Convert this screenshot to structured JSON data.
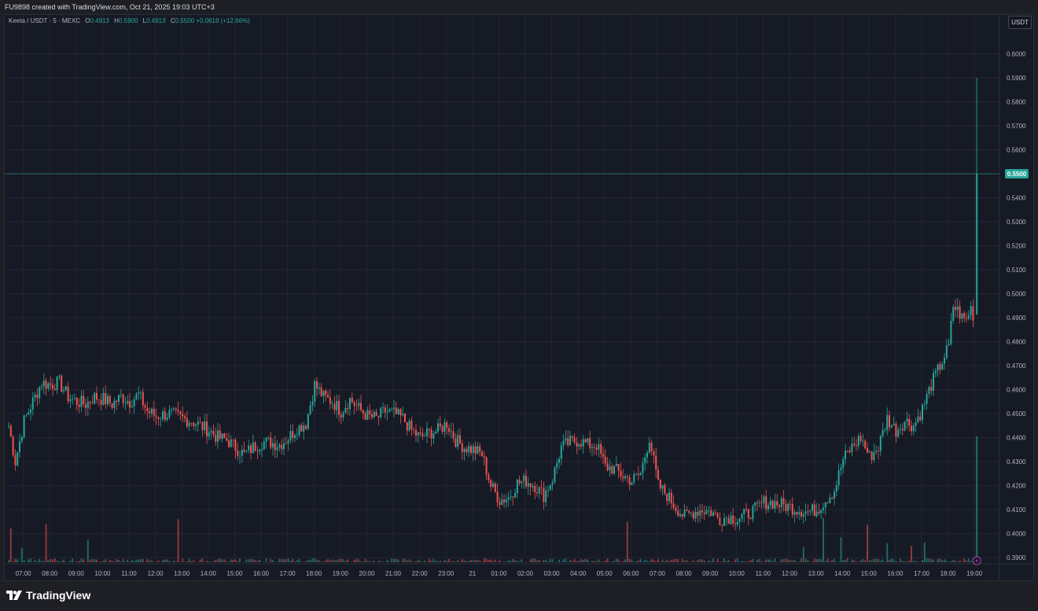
{
  "header": {
    "caption": "FU9898 created with TradingView.com, Oct 21, 2025 19:03 UTC+3"
  },
  "legend": {
    "symbol": "Keeta / USDT · 5 · MEXC",
    "open_label": "O",
    "open": "0.4913",
    "high_label": "H",
    "high": "0.5900",
    "low_label": "L",
    "low": "0.4913",
    "close_label": "C",
    "close": "0.5500",
    "change": "+0.0618 (+12.66%)"
  },
  "currency_button": "USDT",
  "brand": {
    "name": "TradingView"
  },
  "colors": {
    "up": "#26a69a",
    "down": "#ef5350",
    "background": "#161a25",
    "grid": "#232632",
    "price_line": "#26a69a"
  },
  "chart_data": {
    "type": "candlestick",
    "interval_minutes": 5,
    "y_ticks": [
      "0.6000",
      "0.5900",
      "0.5800",
      "0.5700",
      "0.5600",
      "0.5500",
      "0.5400",
      "0.5300",
      "0.5200",
      "0.5100",
      "0.5000",
      "0.4900",
      "0.4800",
      "0.4700",
      "0.4600",
      "0.4500",
      "0.4400",
      "0.4300",
      "0.4200",
      "0.4100",
      "0.4000",
      "0.3900"
    ],
    "y_range": [
      0.382,
      0.602
    ],
    "x_ticks": [
      "07:00",
      "08:00",
      "09:00",
      "10:00",
      "11:00",
      "12:00",
      "13:00",
      "14:00",
      "15:00",
      "16:00",
      "17:00",
      "18:00",
      "19:00",
      "20:00",
      "21:00",
      "22:00",
      "23:00",
      "21",
      "01:00",
      "02:00",
      "03:00",
      "04:00",
      "05:00",
      "06:00",
      "07:00",
      "08:00",
      "09:00",
      "10:00",
      "11:00",
      "12:00",
      "13:00",
      "14:00",
      "15:00",
      "16:00",
      "17:00",
      "18:00",
      "19:00"
    ],
    "x_start": "2025-10-20 06:25",
    "last_price": "0.5500",
    "close_path": [
      [
        "06:25",
        0.445
      ],
      [
        "06:40",
        0.43
      ],
      [
        "07:00",
        0.447
      ],
      [
        "07:20",
        0.455
      ],
      [
        "07:40",
        0.463
      ],
      [
        "08:00",
        0.462
      ],
      [
        "08:20",
        0.463
      ],
      [
        "08:40",
        0.457
      ],
      [
        "09:00",
        0.455
      ],
      [
        "09:20",
        0.454
      ],
      [
        "09:40",
        0.457
      ],
      [
        "10:00",
        0.456
      ],
      [
        "10:20",
        0.454
      ],
      [
        "10:40",
        0.457
      ],
      [
        "11:00",
        0.455
      ],
      [
        "11:20",
        0.458
      ],
      [
        "11:40",
        0.451
      ],
      [
        "12:00",
        0.449
      ],
      [
        "12:30",
        0.45
      ],
      [
        "13:00",
        0.448
      ],
      [
        "13:20",
        0.447
      ],
      [
        "13:40",
        0.445
      ],
      [
        "14:00",
        0.443
      ],
      [
        "14:20",
        0.44
      ],
      [
        "14:40",
        0.439
      ],
      [
        "15:00",
        0.436
      ],
      [
        "15:20",
        0.433
      ],
      [
        "15:40",
        0.436
      ],
      [
        "16:00",
        0.438
      ],
      [
        "16:20",
        0.438
      ],
      [
        "16:40",
        0.437
      ],
      [
        "17:00",
        0.44
      ],
      [
        "17:20",
        0.444
      ],
      [
        "17:40",
        0.446
      ],
      [
        "18:00",
        0.462
      ],
      [
        "18:20",
        0.457
      ],
      [
        "18:40",
        0.455
      ],
      [
        "19:00",
        0.451
      ],
      [
        "19:20",
        0.456
      ],
      [
        "19:40",
        0.452
      ],
      [
        "20:00",
        0.449
      ],
      [
        "20:20",
        0.448
      ],
      [
        "20:40",
        0.451
      ],
      [
        "21:00",
        0.45
      ],
      [
        "21:20",
        0.448
      ],
      [
        "21:40",
        0.443
      ],
      [
        "22:00",
        0.44
      ],
      [
        "22:20",
        0.442
      ],
      [
        "22:40",
        0.443
      ],
      [
        "23:00",
        0.446
      ],
      [
        "23:20",
        0.439
      ],
      [
        "23:40",
        0.436
      ],
      [
        "00:00",
        0.435
      ],
      [
        "00:20",
        0.433
      ],
      [
        "00:40",
        0.42
      ],
      [
        "01:00",
        0.414
      ],
      [
        "01:20",
        0.415
      ],
      [
        "01:40",
        0.421
      ],
      [
        "02:00",
        0.422
      ],
      [
        "02:20",
        0.42
      ],
      [
        "02:40",
        0.416
      ],
      [
        "03:00",
        0.423
      ],
      [
        "03:20",
        0.436
      ],
      [
        "03:40",
        0.438
      ],
      [
        "04:00",
        0.439
      ],
      [
        "04:20",
        0.437
      ],
      [
        "04:40",
        0.437
      ],
      [
        "05:00",
        0.428
      ],
      [
        "05:20",
        0.427
      ],
      [
        "05:40",
        0.424
      ],
      [
        "06:00",
        0.422
      ],
      [
        "06:20",
        0.425
      ],
      [
        "06:40",
        0.44
      ],
      [
        "07:00",
        0.42
      ],
      [
        "07:20",
        0.416
      ],
      [
        "07:40",
        0.411
      ],
      [
        "08:00",
        0.407
      ],
      [
        "08:20",
        0.409
      ],
      [
        "08:40",
        0.41
      ],
      [
        "09:00",
        0.409
      ],
      [
        "09:20",
        0.406
      ],
      [
        "09:40",
        0.407
      ],
      [
        "10:00",
        0.406
      ],
      [
        "10:20",
        0.408
      ],
      [
        "10:40",
        0.41
      ],
      [
        "11:00",
        0.413
      ],
      [
        "11:20",
        0.413
      ],
      [
        "11:40",
        0.412
      ],
      [
        "12:00",
        0.411
      ],
      [
        "12:20",
        0.41
      ],
      [
        "12:40",
        0.409
      ],
      [
        "13:00",
        0.41
      ],
      [
        "13:20",
        0.414
      ],
      [
        "13:40",
        0.418
      ],
      [
        "14:00",
        0.431
      ],
      [
        "14:20",
        0.436
      ],
      [
        "14:40",
        0.44
      ],
      [
        "15:00",
        0.432
      ],
      [
        "15:20",
        0.436
      ],
      [
        "15:40",
        0.448
      ],
      [
        "16:00",
        0.443
      ],
      [
        "16:20",
        0.447
      ],
      [
        "16:40",
        0.445
      ],
      [
        "17:00",
        0.452
      ],
      [
        "17:20",
        0.462
      ],
      [
        "17:40",
        0.47
      ],
      [
        "18:00",
        0.478
      ],
      [
        "18:10",
        0.495
      ],
      [
        "18:20",
        0.493
      ],
      [
        "18:30",
        0.49
      ],
      [
        "18:40",
        0.489
      ],
      [
        "18:45",
        0.492
      ],
      [
        "18:50",
        0.494
      ],
      [
        "18:55",
        0.4913
      ],
      [
        "19:00",
        0.55
      ]
    ],
    "final_candle": {
      "open": 0.4913,
      "high": 0.59,
      "low": 0.4913,
      "close": 0.55
    }
  }
}
